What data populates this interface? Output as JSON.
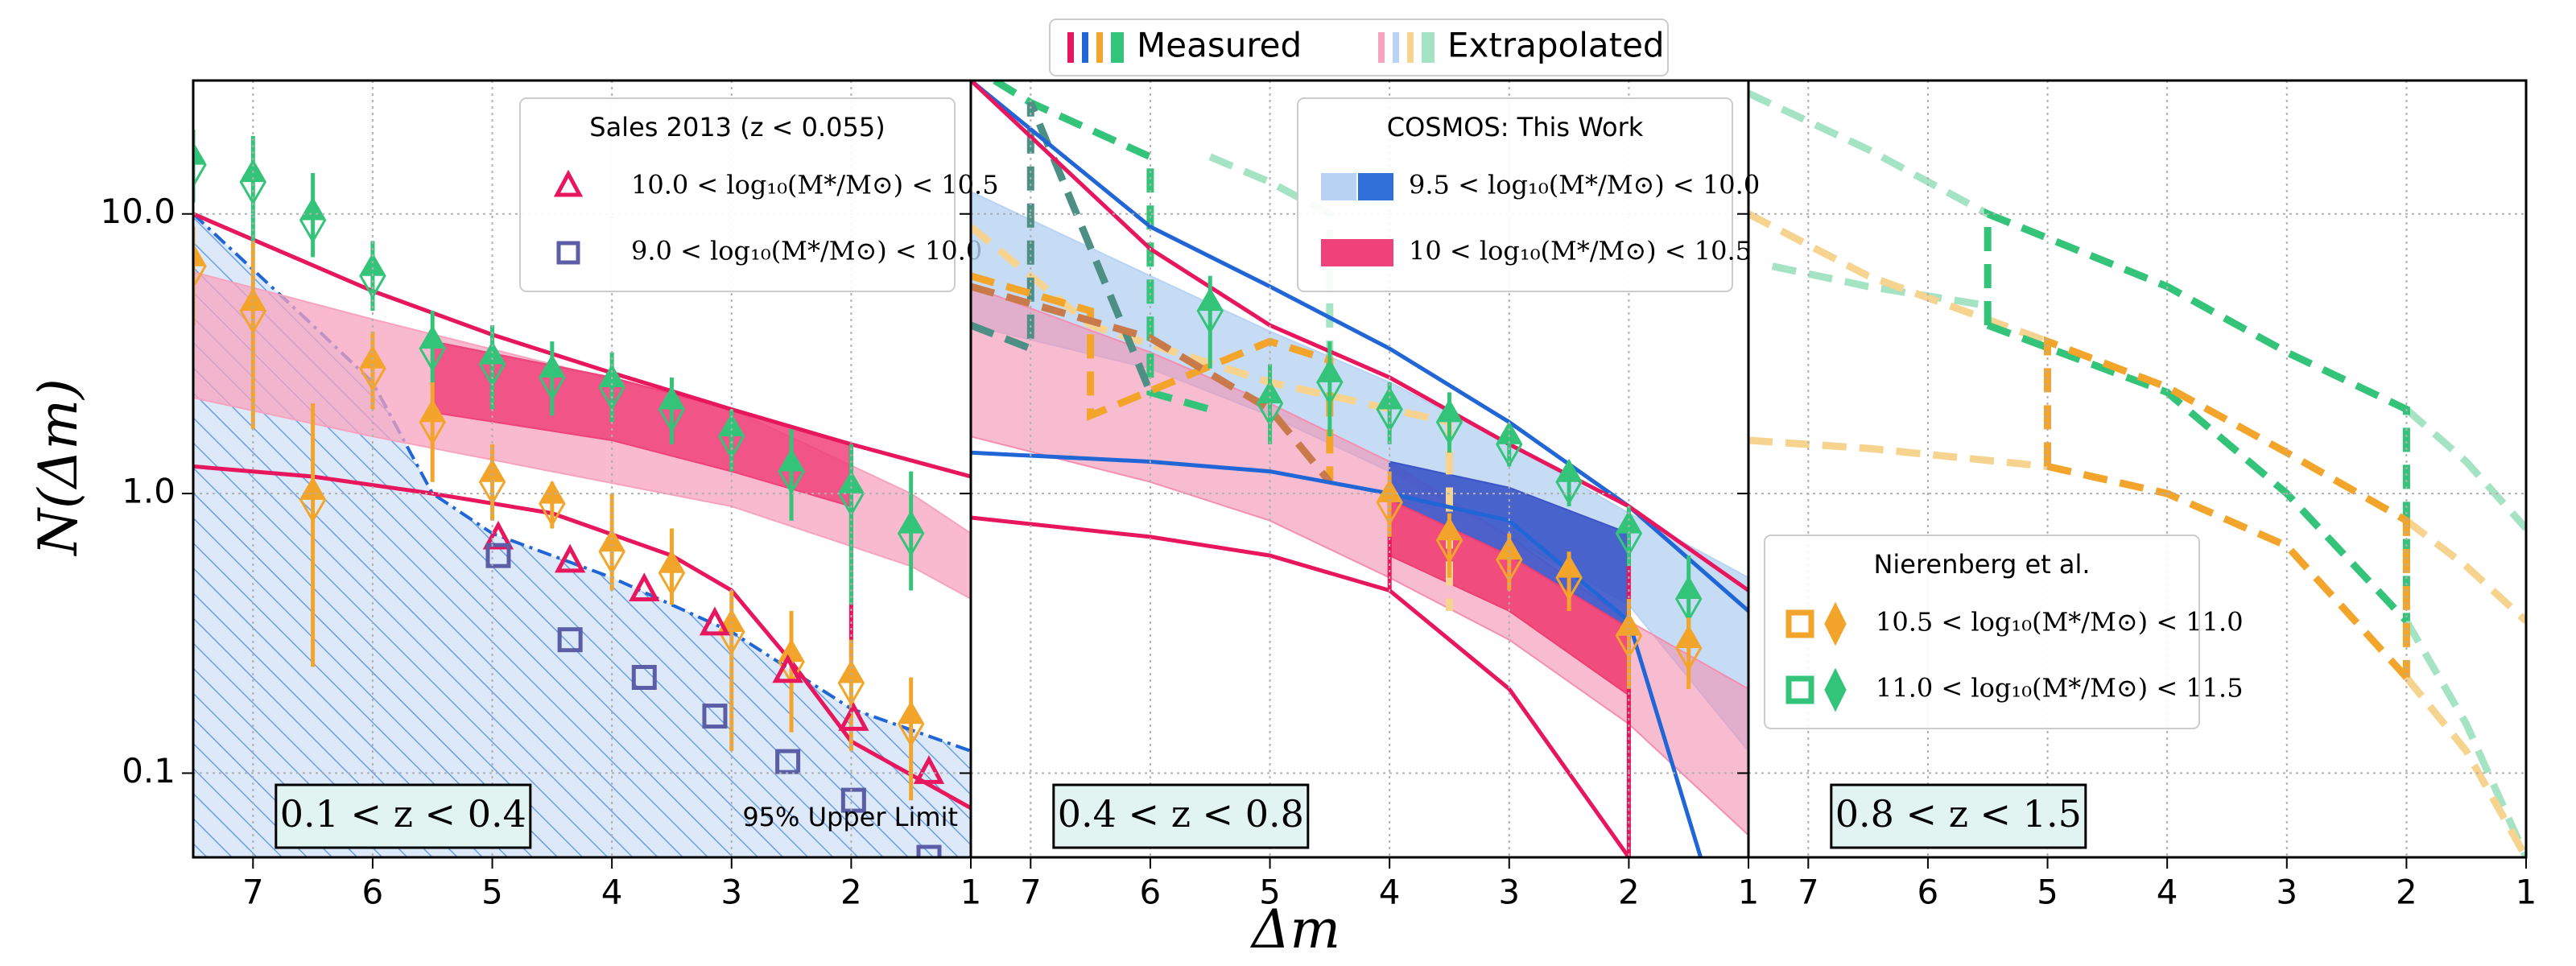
{
  "figure": {
    "xlabel": "Δm",
    "ylabel": "N(Δm)",
    "legend": [
      {
        "label": "Measured",
        "colors": [
          "#e8175d",
          "#2166d6",
          "#f2a52a",
          "#33c47a"
        ]
      },
      {
        "label": "Extrapolated",
        "colors": [
          "#f7a3bf",
          "#b8d3f3",
          "#f6d38e",
          "#a4e3c3"
        ]
      }
    ]
  },
  "chart_data": [
    {
      "type": "line",
      "panel_label": "0.1 < z < 0.4",
      "xlim": [
        7.5,
        1
      ],
      "ylim": [
        0.05,
        30
      ],
      "log_y": true,
      "grid": true,
      "xticks": [
        7,
        6,
        5,
        4,
        3,
        2,
        1
      ],
      "yticks": [
        {
          "value": 0.1,
          "label": "0.1"
        },
        {
          "value": 1,
          "label": "1.0"
        },
        {
          "value": 10,
          "label": "10.0"
        }
      ],
      "legend_title": "Sales 2013 (z < 0.055)",
      "legend_loc": "upper right",
      "legend": [
        {
          "label": "10.0 < log₁₀(M*/M⊙) < 10.5",
          "marker": "triangle",
          "colors": [
            "#e8175d"
          ]
        },
        {
          "label": "9.0 < log₁₀(M*/M⊙) < 10.0",
          "marker": "square",
          "colors": [
            "#5b5ea6"
          ]
        }
      ],
      "annotation": "95% Upper Limit",
      "series": [
        {
          "kind": "limit",
          "color": "#2166d6",
          "x": [
            7.5,
            6.5,
            6,
            5.5,
            5,
            4,
            3,
            2,
            1
          ],
          "values": [
            10,
            4,
            2.5,
            1.0,
            0.72,
            0.5,
            0.32,
            0.17,
            0.12
          ]
        },
        {
          "kind": "band",
          "color": "#f7a3bf",
          "opacity": 0.75,
          "x": [
            7.5,
            6,
            4.5,
            3,
            1.5,
            1
          ],
          "lower": [
            2.2,
            1.6,
            1.2,
            0.9,
            0.55,
            0.42
          ],
          "upper": [
            6.2,
            4.2,
            2.9,
            2.0,
            1.0,
            0.72
          ]
        },
        {
          "kind": "band",
          "color": "#f0427a",
          "opacity": 0.85,
          "x": [
            5.5,
            4,
            3,
            2
          ],
          "lower": [
            1.95,
            1.55,
            1.2,
            0.9
          ],
          "upper": [
            3.5,
            2.6,
            2.0,
            1.5
          ]
        },
        {
          "kind": "line",
          "dash": "solid",
          "color": "#e8175d",
          "x": [
            7.5,
            6,
            5,
            4,
            3,
            2,
            1
          ],
          "values": [
            10,
            5.3,
            3.7,
            2.7,
            2.0,
            1.5,
            1.15
          ]
        },
        {
          "kind": "line",
          "dash": "solid",
          "color": "#e8175d",
          "x": [
            7.5,
            6.5,
            5.5,
            4.5,
            3.5,
            3,
            2.5,
            2,
            1
          ],
          "values": [
            1.25,
            1.15,
            1.0,
            0.85,
            0.6,
            0.45,
            0.25,
            0.13,
            0.075
          ]
        },
        {
          "kind": "line",
          "dash": "solid",
          "color": "#e8175d",
          "x": [
            2,
            2
          ],
          "values": [
            0.25,
            1.5
          ]
        },
        {
          "kind": "points",
          "marker": "diamond",
          "color": "#33c47a",
          "x": [
            7.5,
            7,
            6.5,
            6,
            5.5,
            5,
            4.5,
            4,
            3.5,
            3,
            2.5,
            2,
            1.5
          ],
          "values": [
            15,
            13,
            9.5,
            6,
            3.3,
            2.9,
            2.6,
            2.4,
            2.0,
            1.6,
            1.2,
            1.0,
            0.72
          ],
          "lower": [
            11,
            8,
            7,
            4.5,
            2.4,
            2.0,
            1.9,
            1.8,
            1.5,
            1.2,
            0.8,
            0.4,
            0.45
          ],
          "upper": [
            20,
            19,
            14,
            8,
            4.5,
            4,
            3.5,
            3.2,
            2.6,
            2,
            1.7,
            1.5,
            1.2
          ]
        },
        {
          "kind": "points",
          "marker": "diamond",
          "color": "#f2a52a",
          "x": [
            7.5,
            7,
            6.5,
            6,
            5.5,
            5,
            4.5,
            4,
            3.5,
            3,
            2.5,
            2,
            1.5
          ],
          "values": [
            6.5,
            4.5,
            0.95,
            2.8,
            1.8,
            1.1,
            0.92,
            0.62,
            0.52,
            0.32,
            0.25,
            0.21,
            0.15
          ],
          "lower": [
            4,
            1.7,
            0.24,
            2,
            1.1,
            0.8,
            0.75,
            0.45,
            0.4,
            0.12,
            0.14,
            0.12,
            0.08
          ],
          "upper": [
            9,
            8,
            2.1,
            3.8,
            2.5,
            1.5,
            1.1,
            1.0,
            0.75,
            0.45,
            0.38,
            0.3,
            0.22
          ]
        },
        {
          "kind": "points",
          "marker": "triangle",
          "color": "#e8175d",
          "x": [
            4.95,
            4.35,
            3.73,
            3.14,
            2.53,
            1.98,
            1.35
          ],
          "values": [
            0.69,
            0.57,
            0.45,
            0.34,
            0.23,
            0.155,
            0.1
          ]
        },
        {
          "kind": "points",
          "marker": "square",
          "color": "#5b5ea6",
          "x": [
            4.95,
            4.35,
            3.73,
            3.14,
            2.53,
            1.98,
            1.35
          ],
          "values": [
            0.6,
            0.3,
            0.22,
            0.16,
            0.11,
            0.08,
            0.05
          ]
        }
      ]
    },
    {
      "type": "line",
      "panel_label": "0.4 < z < 0.8",
      "xlim": [
        7.5,
        1
      ],
      "ylim": [
        0.05,
        30
      ],
      "log_y": true,
      "grid": true,
      "xticks": [
        7,
        6,
        5,
        4,
        3,
        2,
        1
      ],
      "yticks": [
        0.1,
        1,
        10
      ],
      "legend_title": "COSMOS: This Work",
      "legend_loc": "upper right",
      "legend": [
        {
          "label": "9.5 < log₁₀(M*/M⊙) < 10.0",
          "marker": "patch",
          "colors": [
            "#b8d3f3",
            "#2f6fd8"
          ]
        },
        {
          "label": "10 < log₁₀(M*/M⊙) < 10.5",
          "marker": "patch",
          "colors": [
            "#f0427a"
          ]
        }
      ],
      "series": [
        {
          "kind": "band",
          "color": "#b8d3f3",
          "opacity": 0.8,
          "x": [
            7.5,
            6,
            5,
            4,
            3,
            2,
            1
          ],
          "lower": [
            4,
            2.8,
            1.9,
            1.2,
            0.7,
            0.4,
            0.12
          ],
          "upper": [
            12,
            6,
            3.8,
            2.5,
            1.5,
            0.85,
            0.5
          ]
        },
        {
          "kind": "band",
          "color": "#f48fb1",
          "opacity": 0.6,
          "x": [
            7.5,
            6,
            5,
            4,
            3,
            2,
            1
          ],
          "lower": [
            1.6,
            1.1,
            0.8,
            0.5,
            0.3,
            0.15,
            0.06
          ],
          "upper": [
            5.5,
            3.2,
            2.1,
            1.3,
            0.7,
            0.35,
            0.2
          ]
        },
        {
          "kind": "band",
          "color": "#3b55c9",
          "opacity": 0.9,
          "x": [
            4,
            3,
            2
          ],
          "lower": [
            0.95,
            0.6,
            0.33
          ],
          "upper": [
            1.3,
            1.05,
            0.72
          ]
        },
        {
          "kind": "band",
          "color": "#ee3f73",
          "opacity": 0.9,
          "x": [
            4,
            3,
            2
          ],
          "lower": [
            0.6,
            0.38,
            0.19
          ],
          "upper": [
            0.95,
            0.6,
            0.33
          ]
        },
        {
          "kind": "line",
          "dash": "dashed",
          "color": "#f6d38e",
          "x": [
            7.5,
            6.5,
            5,
            3.5,
            3.5
          ],
          "values": [
            9,
            4,
            2.5,
            1.8,
            0.38
          ]
        },
        {
          "kind": "line",
          "dash": "dashed",
          "color": "#a4e3c3",
          "x": [
            5.5,
            5,
            4.5,
            4.5
          ],
          "values": [
            16,
            13,
            10,
            2.5
          ]
        },
        {
          "kind": "line",
          "dash": "dashed",
          "color": "#33c47a",
          "x": [
            7.3,
            7,
            6,
            6,
            5.5
          ],
          "values": [
            30,
            25,
            16,
            2.3,
            2.0
          ]
        },
        {
          "kind": "line",
          "dash": "dashed",
          "color": "#4d8f85",
          "x": [
            7.5,
            7,
            7,
            6
          ],
          "values": [
            4,
            3.3,
            25,
            2.3
          ]
        },
        {
          "kind": "line",
          "dash": "dashed",
          "color": "#f2a52a",
          "x": [
            7.5,
            6.5,
            6.5,
            5,
            4.5,
            4.5
          ],
          "values": [
            6,
            4.5,
            1.9,
            3.5,
            3.0,
            1.1
          ]
        },
        {
          "kind": "line",
          "dash": "dashed",
          "color": "#c97a4a",
          "x": [
            7.5,
            6,
            5,
            4.5
          ],
          "values": [
            5.5,
            3.6,
            2.0,
            1.1
          ]
        },
        {
          "kind": "line",
          "dash": "solid",
          "color": "#2166d6",
          "x": [
            7.5,
            6,
            5,
            4,
            3,
            2,
            1
          ],
          "values": [
            30,
            9,
            5.5,
            3.3,
            1.8,
            0.9,
            0.38
          ]
        },
        {
          "kind": "line",
          "dash": "solid",
          "color": "#2166d6",
          "x": [
            7.5,
            6,
            5,
            4,
            3,
            2,
            1.4
          ],
          "values": [
            1.4,
            1.3,
            1.2,
            1.0,
            0.8,
            0.35,
            0.05
          ]
        },
        {
          "kind": "line",
          "dash": "solid",
          "color": "#e8175d",
          "x": [
            7.5,
            6,
            5,
            4,
            3,
            2,
            1
          ],
          "values": [
            30,
            7.5,
            4,
            2.6,
            1.5,
            0.9,
            0.45
          ]
        },
        {
          "kind": "line",
          "dash": "solid",
          "color": "#e8175d",
          "x": [
            7.5,
            6,
            5,
            4,
            3,
            2.5,
            2
          ],
          "values": [
            0.82,
            0.7,
            0.6,
            0.45,
            0.2,
            0.1,
            0.05
          ]
        },
        {
          "kind": "line",
          "dash": "solid",
          "color": "#e8175d",
          "x": [
            4,
            4
          ],
          "values": [
            0.45,
            1.0
          ]
        },
        {
          "kind": "line",
          "dash": "solid",
          "color": "#e8175d",
          "x": [
            2,
            2
          ],
          "values": [
            0.05,
            0.7
          ]
        },
        {
          "kind": "points",
          "marker": "diamond",
          "color": "#33c47a",
          "x": [
            5.5,
            5,
            4.5,
            4,
            3.5,
            3,
            2.5,
            2,
            1.5
          ],
          "values": [
            4.5,
            2.1,
            2.5,
            2.0,
            1.8,
            1.5,
            1.1,
            0.72,
            0.42
          ],
          "lower": [
            2.8,
            1.5,
            1.6,
            1.5,
            1.4,
            1.25,
            0.9,
            0.55,
            0.28
          ],
          "upper": [
            6,
            2.9,
            3.5,
            2.5,
            2.3,
            1.75,
            1.3,
            0.9,
            0.6
          ]
        },
        {
          "kind": "points",
          "marker": "diamond",
          "color": "#f2a52a",
          "x": [
            4,
            3.5,
            3,
            2.5,
            2,
            1.5
          ],
          "values": [
            0.93,
            0.68,
            0.58,
            0.5,
            0.31,
            0.28
          ],
          "lower": [
            0.7,
            0.5,
            0.45,
            0.38,
            0.2,
            0.2
          ],
          "upper": [
            1.2,
            0.85,
            0.72,
            0.62,
            0.42,
            0.36
          ]
        }
      ]
    },
    {
      "type": "line",
      "panel_label": "0.8 < z < 1.5",
      "xlim": [
        7.5,
        1
      ],
      "ylim": [
        0.05,
        30
      ],
      "log_y": true,
      "grid": true,
      "xticks": [
        7,
        6,
        5,
        4,
        3,
        2,
        1
      ],
      "yticks": [
        0.1,
        1,
        10
      ],
      "legend_title": "Nierenberg et al.",
      "legend_loc": "lower left",
      "legend": [
        {
          "label": "10.5 < log₁₀(M*/M⊙) < 11.0",
          "marker": "square-diamond",
          "colors": [
            "#f2a52a"
          ]
        },
        {
          "label": "11.0 < log₁₀(M*/M⊙) < 11.5",
          "marker": "square-diamond",
          "colors": [
            "#33c47a"
          ]
        }
      ],
      "series": [
        {
          "kind": "line",
          "dash": "dashed",
          "color": "#a4e3c3",
          "x": [
            7.5,
            6.5,
            5.5
          ],
          "values": [
            27,
            17,
            10
          ]
        },
        {
          "kind": "line",
          "dash": "dashed",
          "color": "#a4e3c3",
          "x": [
            7.3,
            6.5,
            5.5
          ],
          "values": [
            6.5,
            5.5,
            4.7
          ]
        },
        {
          "kind": "line",
          "dash": "dashed",
          "color": "#a4e3c3",
          "x": [
            2,
            1.5,
            1
          ],
          "values": [
            2.0,
            1.3,
            0.75
          ]
        },
        {
          "kind": "line",
          "dash": "dashed",
          "color": "#a4e3c3",
          "x": [
            2,
            1.5,
            1
          ],
          "values": [
            0.35,
            0.15,
            0.05
          ]
        },
        {
          "kind": "line",
          "dash": "dashed",
          "color": "#f6d38e",
          "x": [
            7.5,
            6.5,
            5
          ],
          "values": [
            10,
            6,
            3.5
          ]
        },
        {
          "kind": "line",
          "dash": "dashed",
          "color": "#f6d38e",
          "x": [
            7.5,
            6.5,
            5
          ],
          "values": [
            1.55,
            1.45,
            1.25
          ]
        },
        {
          "kind": "line",
          "dash": "dashed",
          "color": "#f6d38e",
          "x": [
            2,
            1.5,
            1
          ],
          "values": [
            0.8,
            0.55,
            0.35
          ]
        },
        {
          "kind": "line",
          "dash": "dashed",
          "color": "#f6d38e",
          "x": [
            2,
            1.5,
            1
          ],
          "values": [
            0.22,
            0.12,
            0.05
          ]
        },
        {
          "kind": "line",
          "dash": "dashed",
          "color": "#33c47a",
          "x": [
            5.5,
            5.5,
            4,
            3,
            2,
            2
          ],
          "values": [
            4,
            10,
            5.5,
            3.2,
            2.0,
            0.35
          ]
        },
        {
          "kind": "line",
          "dash": "dashed",
          "color": "#33c47a",
          "x": [
            5.5,
            4,
            3,
            2
          ],
          "values": [
            4,
            2.3,
            1.0,
            0.35
          ]
        },
        {
          "kind": "line",
          "dash": "dashed",
          "color": "#f2a52a",
          "x": [
            5,
            5,
            4,
            3,
            2,
            2
          ],
          "values": [
            1.25,
            3.5,
            2.4,
            1.4,
            0.8,
            0.22
          ]
        },
        {
          "kind": "line",
          "dash": "dashed",
          "color": "#f2a52a",
          "x": [
            5,
            4,
            3,
            2
          ],
          "values": [
            1.25,
            1.0,
            0.65,
            0.22
          ]
        }
      ]
    }
  ]
}
